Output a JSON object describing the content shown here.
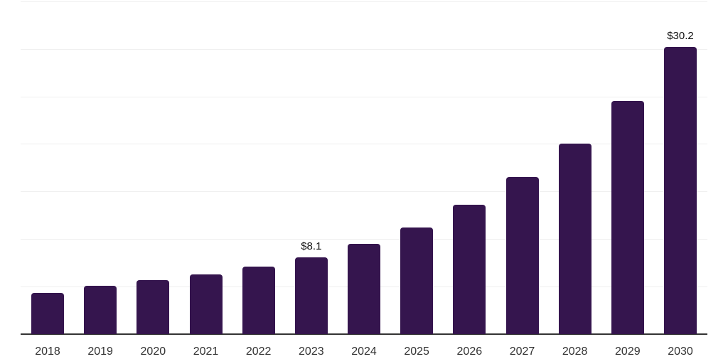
{
  "chart_data": {
    "type": "bar",
    "title": "",
    "xlabel": "",
    "ylabel": "",
    "categories": [
      "2018",
      "2019",
      "2020",
      "2021",
      "2022",
      "2023",
      "2024",
      "2025",
      "2026",
      "2027",
      "2028",
      "2029",
      "2030"
    ],
    "values": [
      4.3,
      5.1,
      5.7,
      6.3,
      7.1,
      8.1,
      9.5,
      11.2,
      13.6,
      16.5,
      20.0,
      24.5,
      30.2
    ],
    "data_labels": [
      "",
      "",
      "",
      "",
      "",
      "$8.1",
      "",
      "",
      "",
      "",
      "",
      "",
      "$30.2"
    ],
    "ylim": [
      0,
      35
    ],
    "grid_step": 5,
    "grid": "on",
    "legend": "none",
    "colors": {
      "bar": "#35154e",
      "axis_line": "#333333",
      "gridline": "#efefef",
      "tick_label": "#333333",
      "data_label": "#111111",
      "background": "#ffffff"
    }
  }
}
